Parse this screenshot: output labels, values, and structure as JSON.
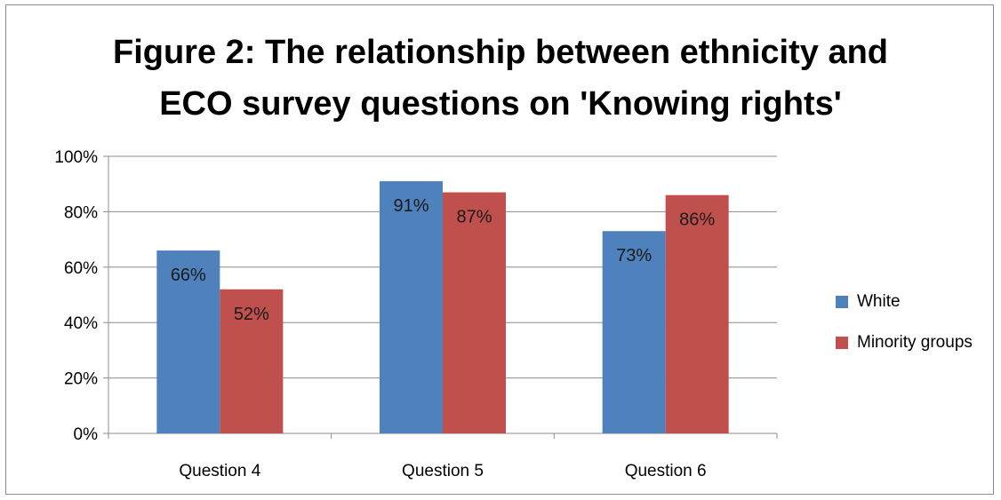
{
  "chart_data": {
    "type": "bar",
    "title_lines": [
      "Figure 2: The relationship between ethnicity and",
      "ECO survey questions on 'Knowing rights'"
    ],
    "categories": [
      "Question 4",
      "Question 5",
      "Question 6"
    ],
    "series": [
      {
        "name": "White",
        "values": [
          66,
          91,
          73
        ],
        "labels": [
          "66%",
          "91%",
          "73%"
        ],
        "color": "#4f81bd"
      },
      {
        "name": "Minority groups",
        "values": [
          52,
          87,
          86
        ],
        "labels": [
          "52%",
          "87%",
          "86%"
        ],
        "color": "#c0504d"
      }
    ],
    "yticks": [
      "0%",
      "20%",
      "40%",
      "60%",
      "80%",
      "100%"
    ],
    "ylim": [
      0,
      100
    ],
    "grid": true,
    "legend_position": "right"
  }
}
